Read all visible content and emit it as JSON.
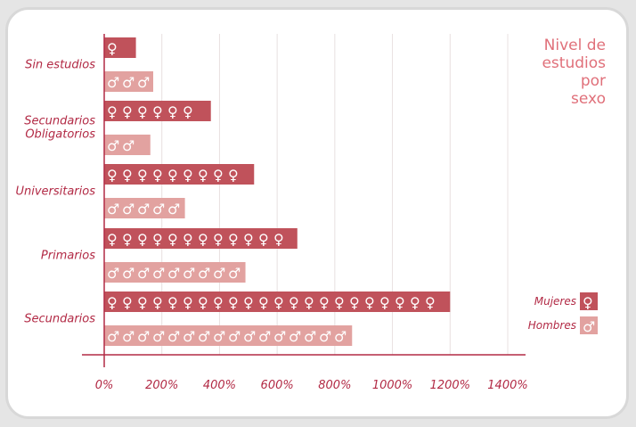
{
  "chart_data": {
    "type": "bar",
    "title_lines": [
      "Nivel de",
      "estudios",
      "por",
      "sexo"
    ],
    "categories": [
      "Sin estudios",
      "Secundarios\nObligatorios",
      "Universitarios",
      "Primarios",
      "Secundarios"
    ],
    "series": [
      {
        "name": "Mujeres",
        "symbol": "♀",
        "color": "#c0525b",
        "values": [
          110,
          370,
          520,
          670,
          1200
        ]
      },
      {
        "name": "Hombres",
        "symbol": "♂",
        "color": "#e2a2a0",
        "values": [
          170,
          160,
          280,
          490,
          860
        ]
      }
    ],
    "xlim": [
      0,
      1400
    ],
    "xticks": [
      "0%",
      "200%",
      "400%",
      "600%",
      "800%",
      "1000%",
      "1200%",
      "1400%"
    ],
    "xtick_values": [
      0,
      200,
      400,
      600,
      800,
      1000,
      1200,
      1400
    ],
    "grid": true,
    "legend_position": "bottom-right",
    "colors": {
      "axis": "#b22a45",
      "grid": "#e8e0e0",
      "text": "#b22a45",
      "title": "#e0707a"
    }
  }
}
